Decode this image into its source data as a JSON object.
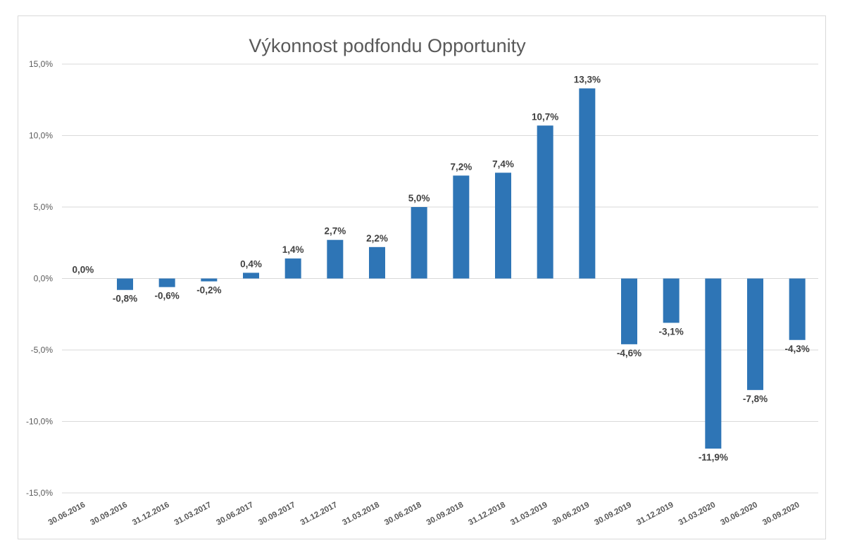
{
  "chart_data": {
    "type": "bar",
    "title": "Výkonnost podfondu Opportunity",
    "categories": [
      "30.06.2016",
      "30.09.2016",
      "31.12.2016",
      "31.03.2017",
      "30.06.2017",
      "30.09.2017",
      "31.12.2017",
      "31.03.2018",
      "30.06.2018",
      "30.09.2018",
      "31.12.2018",
      "31.03.2019",
      "30.06.2019",
      "30.09.2019",
      "31.12.2019",
      "31.03.2020",
      "30.06.2020",
      "30.09.2020"
    ],
    "values": [
      0.0,
      -0.8,
      -0.6,
      -0.2,
      0.4,
      1.4,
      2.7,
      2.2,
      5.0,
      7.2,
      7.4,
      10.7,
      13.3,
      -4.6,
      -3.1,
      -11.9,
      -7.8,
      -4.3
    ],
    "data_labels": [
      "0,0%",
      "-0,8%",
      "-0,6%",
      "-0,2%",
      "0,4%",
      "1,4%",
      "2,7%",
      "2,2%",
      "5,0%",
      "7,2%",
      "7,4%",
      "10,7%",
      "13,3%",
      "-4,6%",
      "-3,1%",
      "-11,9%",
      "-7,8%",
      "-4,3%"
    ],
    "yticks": [
      15,
      10,
      5,
      0,
      -5,
      -10,
      -15
    ],
    "ytick_labels": [
      "15,0%",
      "10,0%",
      "5,0%",
      "0,0%",
      "-5,0%",
      "-10,0%",
      "-15,0%"
    ],
    "ylim": [
      -15,
      15
    ],
    "grid": true,
    "legend": false,
    "bar_color": "#2e75b6",
    "grid_color": "#d9d9d9",
    "xlabel": "",
    "ylabel": ""
  }
}
